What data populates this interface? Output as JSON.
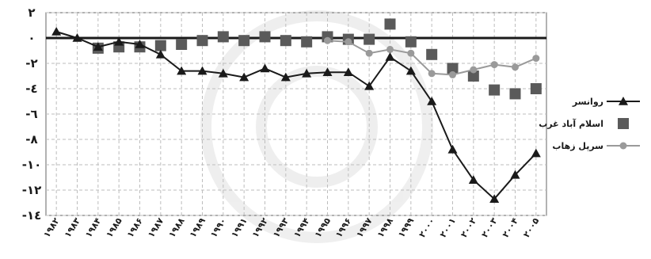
{
  "chart_data": {
    "type": "line",
    "title": "",
    "xlabel": "",
    "ylabel": "",
    "categories": [
      "۱۹۸۲",
      "۱۹۸۳",
      "۱۹۸۴",
      "۱۹۸۵",
      "۱۹۸۶",
      "۱۹۸۷",
      "۱۹۸۸",
      "۱۹۸۹",
      "۱۹۹۰",
      "۱۹۹۱",
      "۱۹۹۲",
      "۱۹۹۳",
      "۱۹۹۴",
      "۱۹۹۵",
      "۱۹۹۶",
      "۱۹۹۷",
      "۱۹۹۸",
      "۱۹۹۹",
      "۲۰۰۰",
      "۲۰۰۱",
      "۲۰۰۲",
      "۲۰۰۳",
      "۲۰۰۴",
      "۲۰۰۵"
    ],
    "ylim": [
      -14,
      2
    ],
    "yticks": [
      2,
      0,
      -2,
      -4,
      -6,
      -8,
      -10,
      -12,
      -14
    ],
    "ytick_labels": [
      "۲",
      "۰",
      "-۲",
      "-٤",
      "-٦",
      "-۸",
      "-۱۰",
      "-۱۲",
      "-۱٤"
    ],
    "grid": true,
    "legend_position": "right",
    "series": [
      {
        "name": "روانسر",
        "marker": "triangle",
        "color": "#1a1a1a",
        "line": true,
        "values": [
          0.5,
          0,
          -0.7,
          -0.3,
          -0.5,
          -1.3,
          -2.6,
          -2.6,
          -2.8,
          -3.1,
          -2.4,
          -3.1,
          -2.8,
          -2.7,
          -2.7,
          -3.8,
          -1.5,
          -2.6,
          -5,
          -8.8,
          -11.2,
          -12.7,
          -10.8,
          -9.1
        ]
      },
      {
        "name": "اسلام آباد غرب",
        "marker": "square",
        "color": "#5a5a5a",
        "line": false,
        "values": [
          null,
          null,
          -0.8,
          -0.7,
          -0.7,
          -0.6,
          -0.5,
          -0.2,
          0.1,
          -0.2,
          0.1,
          -0.2,
          -0.3,
          0.1,
          -0.1,
          -0.1,
          1.1,
          -0.3,
          -1.3,
          -2.4,
          -3.0,
          -4.1,
          -4.4,
          -4.0
        ]
      },
      {
        "name": "سرپل زهاب",
        "marker": "circle",
        "color": "#9a9a9a",
        "line": true,
        "values": [
          null,
          null,
          null,
          null,
          null,
          null,
          null,
          null,
          null,
          null,
          null,
          null,
          null,
          -0.2,
          -0.3,
          -1.2,
          -0.9,
          -1.2,
          -2.8,
          -2.9,
          -2.5,
          -2.1,
          -2.3,
          -1.6
        ]
      }
    ]
  }
}
